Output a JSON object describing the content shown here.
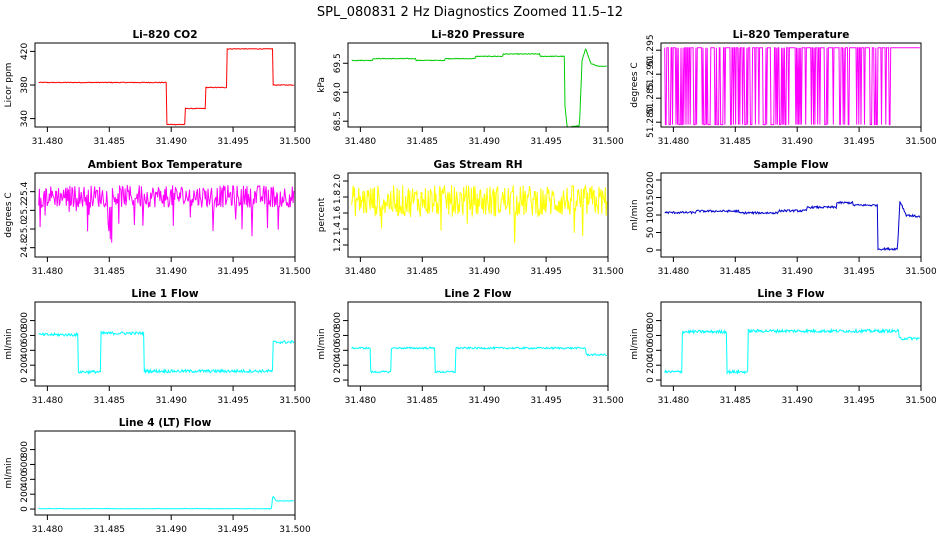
{
  "figure": {
    "title": "SPL_080831  2 Hz Diagnostics Zoomed 11.5–12"
  },
  "chart_data": [
    {
      "type": "line",
      "title": "Li–820 CO2",
      "ylabel": "Licor ppm",
      "color": "#ff0000",
      "noise": 0.4,
      "xlim": [
        31.479,
        31.5
      ],
      "xticks": [
        31.48,
        31.485,
        31.49,
        31.495,
        31.5
      ],
      "xtick_labels": [
        "31.480",
        "31.485",
        "31.490",
        "31.495",
        "31.500"
      ],
      "ylim": [
        330,
        430
      ],
      "yticks": [
        340,
        380,
        420
      ],
      "ytick_labels": [
        "340",
        "380",
        "420"
      ],
      "series": [
        {
          "x": [
            31.4793,
            31.4896,
            31.4896,
            31.4911,
            31.4911,
            31.4928,
            31.4928,
            31.4945,
            31.4945,
            31.4982,
            31.4982,
            31.4999
          ],
          "y": [
            383,
            383,
            333,
            333,
            352,
            352,
            377,
            377,
            423,
            423,
            380,
            380
          ]
        }
      ]
    },
    {
      "type": "line",
      "title": "Li–820 Pressure",
      "ylabel": "kPa",
      "color": "#00cc00",
      "noise": 0.006,
      "xlim": [
        31.479,
        31.5
      ],
      "xticks": [
        31.48,
        31.485,
        31.49,
        31.495,
        31.5
      ],
      "xtick_labels": [
        "31.480",
        "31.485",
        "31.490",
        "31.495",
        "31.500"
      ],
      "ylim": [
        68.4,
        69.85
      ],
      "yticks": [
        68.5,
        69.0,
        69.5
      ],
      "ytick_labels": [
        "68.5",
        "69.0",
        "69.5"
      ],
      "series": [
        {
          "x": [
            31.4793,
            31.481,
            31.481,
            31.4845,
            31.4845,
            31.4868,
            31.4868,
            31.4893,
            31.4893,
            31.4915,
            31.4915,
            31.4945,
            31.4945,
            31.4965,
            31.4965,
            31.4967,
            31.4977,
            31.4979,
            31.4982,
            31.4986,
            31.4992,
            31.4999
          ],
          "y": [
            69.55,
            69.55,
            69.58,
            69.58,
            69.55,
            69.55,
            69.58,
            69.58,
            69.62,
            69.62,
            69.66,
            69.66,
            69.62,
            69.62,
            68.8,
            68.4,
            68.42,
            69.55,
            69.75,
            69.5,
            69.45,
            69.45
          ]
        }
      ]
    },
    {
      "type": "line",
      "title": "Li–820 Temperature",
      "ylabel": "degrees C",
      "color": "#ff00ff",
      "noise": 0,
      "xlim": [
        31.479,
        31.5
      ],
      "xticks": [
        31.48,
        31.485,
        31.49,
        31.495,
        31.5
      ],
      "xtick_labels": [
        "31.480",
        "31.485",
        "31.490",
        "31.495",
        "31.500"
      ],
      "ylim": [
        51.279,
        51.2965
      ],
      "yticks": [
        51.28,
        51.285,
        51.29,
        51.295
      ],
      "ytick_labels": [
        "51.280",
        "51.285",
        "51.290",
        "51.295"
      ],
      "series": [
        {
          "x": [
            31.4793,
            31.4999
          ],
          "y": [
            51.2955,
            51.2955
          ]
        }
      ],
      "switch": {
        "low": 51.2795,
        "high": 51.2955,
        "prob": 0.35,
        "x_end": 31.4975
      }
    },
    {
      "type": "line",
      "title": "Ambient Box Temperature",
      "ylabel": "degrees C",
      "color": "#ff00ff",
      "noise": 0.12,
      "xlim": [
        31.479,
        31.5
      ],
      "xticks": [
        31.48,
        31.485,
        31.49,
        31.495,
        31.5
      ],
      "xtick_labels": [
        "31.480",
        "31.485",
        "31.490",
        "31.495",
        "31.500"
      ],
      "ylim": [
        24.7,
        25.6
      ],
      "yticks": [
        24.8,
        25.0,
        25.2,
        25.4
      ],
      "ytick_labels": [
        "24.8",
        "25.0",
        "25.2",
        "25.4"
      ],
      "series": [
        {
          "x": [
            31.4793,
            31.4999
          ],
          "y": [
            25.35,
            25.35
          ]
        }
      ],
      "spikes": {
        "prob": 0.1,
        "size": 0.45
      }
    },
    {
      "type": "line",
      "title": "Gas Stream RH",
      "ylabel": "percent",
      "color": "#ffff00",
      "noise": 0.2,
      "xlim": [
        31.479,
        31.5
      ],
      "xticks": [
        31.48,
        31.485,
        31.49,
        31.495,
        31.5
      ],
      "xtick_labels": [
        "31.480",
        "31.485",
        "31.490",
        "31.495",
        "31.500"
      ],
      "ylim": [
        1.05,
        2.1
      ],
      "yticks": [
        1.2,
        1.4,
        1.6,
        1.8,
        2.0
      ],
      "ytick_labels": [
        "1.2",
        "1.4",
        "1.6",
        "1.8",
        "2.0"
      ],
      "series": [
        {
          "x": [
            31.4793,
            31.4999
          ],
          "y": [
            1.75,
            1.75
          ]
        }
      ],
      "spikes": {
        "prob": 0.03,
        "size": 0.5
      }
    },
    {
      "type": "line",
      "title": "Sample Flow",
      "ylabel": "ml/min",
      "color": "#0000cc",
      "noise": 3,
      "xlim": [
        31.479,
        31.5
      ],
      "xticks": [
        31.48,
        31.485,
        31.49,
        31.495,
        31.5
      ],
      "xtick_labels": [
        "31.480",
        "31.485",
        "31.490",
        "31.495",
        "31.500"
      ],
      "ylim": [
        -20,
        220
      ],
      "yticks": [
        0,
        50,
        100,
        150,
        200
      ],
      "ytick_labels": [
        "0",
        "50",
        "100",
        "150",
        "200"
      ],
      "series": [
        {
          "x": [
            31.4793,
            31.4818,
            31.4818,
            31.4853,
            31.4853,
            31.4885,
            31.4885,
            31.4908,
            31.4908,
            31.4932,
            31.4932,
            31.4945,
            31.4945,
            31.4965,
            31.4965,
            31.4981,
            31.4983,
            31.4988,
            31.4999
          ],
          "y": [
            107,
            107,
            111,
            111,
            106,
            106,
            112,
            112,
            122,
            122,
            135,
            135,
            128,
            128,
            3,
            3,
            140,
            100,
            95
          ]
        }
      ]
    },
    {
      "type": "line",
      "title": "Line 1 Flow",
      "ylabel": "ml/min",
      "color": "#00ffff",
      "noise": 20,
      "xlim": [
        31.479,
        31.5
      ],
      "xticks": [
        31.48,
        31.485,
        31.49,
        31.495,
        31.5
      ],
      "xtick_labels": [
        "31.480",
        "31.485",
        "31.490",
        "31.495",
        "31.500"
      ],
      "ylim": [
        -80,
        1050
      ],
      "yticks": [
        0,
        200,
        400,
        600,
        800
      ],
      "ytick_labels": [
        "0",
        "200",
        "400",
        "600",
        "800"
      ],
      "series": [
        {
          "x": [
            31.4793,
            31.4825,
            31.4825,
            31.4843,
            31.4843,
            31.4878,
            31.4878,
            31.4982,
            31.4982,
            31.4999
          ],
          "y": [
            610,
            610,
            110,
            110,
            630,
            630,
            120,
            120,
            510,
            510
          ]
        }
      ]
    },
    {
      "type": "line",
      "title": "Line 2 Flow",
      "ylabel": "ml/min",
      "color": "#00ffff",
      "noise": 12,
      "xlim": [
        31.479,
        31.5
      ],
      "xticks": [
        31.48,
        31.485,
        31.49,
        31.495,
        31.5
      ],
      "xtick_labels": [
        "31.480",
        "31.485",
        "31.490",
        "31.495",
        "31.500"
      ],
      "ylim": [
        -80,
        1050
      ],
      "yticks": [
        0,
        200,
        400,
        600,
        800
      ],
      "ytick_labels": [
        "0",
        "200",
        "400",
        "600",
        "800"
      ],
      "series": [
        {
          "x": [
            31.4793,
            31.4808,
            31.4808,
            31.4825,
            31.4825,
            31.486,
            31.486,
            31.4877,
            31.4877,
            31.4982,
            31.4982,
            31.4999
          ],
          "y": [
            430,
            430,
            110,
            110,
            430,
            430,
            110,
            110,
            430,
            430,
            340,
            340
          ]
        }
      ]
    },
    {
      "type": "line",
      "title": "Line 3 Flow",
      "ylabel": "ml/min",
      "color": "#00ffff",
      "noise": 20,
      "xlim": [
        31.479,
        31.5
      ],
      "xticks": [
        31.48,
        31.485,
        31.49,
        31.495,
        31.5
      ],
      "xtick_labels": [
        "31.480",
        "31.485",
        "31.490",
        "31.495",
        "31.500"
      ],
      "ylim": [
        -80,
        1050
      ],
      "yticks": [
        0,
        200,
        400,
        600,
        800
      ],
      "ytick_labels": [
        "0",
        "200",
        "400",
        "600",
        "800"
      ],
      "series": [
        {
          "x": [
            31.4793,
            31.4807,
            31.4807,
            31.4843,
            31.4843,
            31.486,
            31.486,
            31.4982,
            31.4982,
            31.4999
          ],
          "y": [
            110,
            110,
            650,
            650,
            110,
            110,
            660,
            660,
            560,
            560
          ]
        }
      ]
    },
    {
      "type": "line",
      "title": "Line 4 (LT) Flow",
      "ylabel": "ml/min",
      "color": "#00ffff",
      "noise": 3,
      "xlim": [
        31.479,
        31.5
      ],
      "xticks": [
        31.48,
        31.485,
        31.49,
        31.495,
        31.5
      ],
      "xtick_labels": [
        "31.480",
        "31.485",
        "31.490",
        "31.495",
        "31.500"
      ],
      "ylim": [
        -80,
        1050
      ],
      "yticks": [
        0,
        200,
        400,
        600,
        800
      ],
      "ytick_labels": [
        "0",
        "200",
        "400",
        "600",
        "800"
      ],
      "series": [
        {
          "x": [
            31.4793,
            31.4981,
            31.4982,
            31.4985,
            31.4999
          ],
          "y": [
            5,
            5,
            180,
            110,
            110
          ]
        }
      ]
    }
  ]
}
